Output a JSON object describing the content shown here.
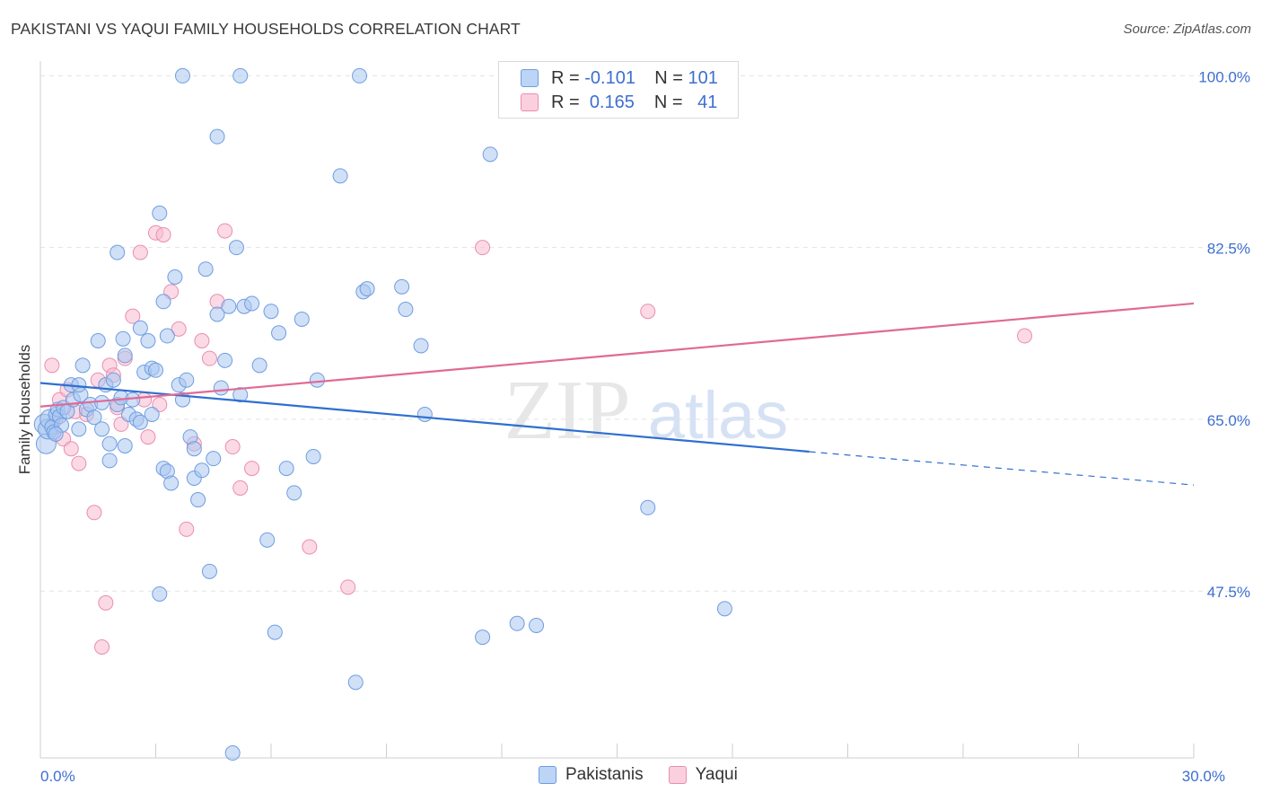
{
  "title": "PAKISTANI VS YAQUI FAMILY HOUSEHOLDS CORRELATION CHART",
  "source": "Source: ZipAtlas.com",
  "watermark": {
    "zip": "ZIP",
    "atlas": "atlas"
  },
  "legend_top": {
    "rows": [
      {
        "r_label": "R =",
        "r_value": "-0.101",
        "n_label": "N =",
        "n_value": "101"
      },
      {
        "r_label": "R =",
        "r_value": "0.165",
        "n_label": "N =",
        "n_value": "41"
      }
    ]
  },
  "legend_bottom": {
    "series1": "Pakistanis",
    "series2": "Yaqui"
  },
  "colors": {
    "blue_fill": "#a9c7f0",
    "blue_stroke": "#6f9de0",
    "blue_line": "#2f6fd0",
    "pink_fill": "#f7bcd0",
    "pink_stroke": "#ea8db0",
    "pink_line": "#e06a96",
    "axis_text": "#3d6fd0",
    "grid": "#e3e3e3"
  },
  "chart_data": {
    "type": "scatter",
    "title": "PAKISTANI VS YAQUI FAMILY HOUSEHOLDS CORRELATION CHART",
    "xlabel": "",
    "ylabel": "Family Households",
    "xlim": [
      0,
      30
    ],
    "ylim": [
      30.5,
      101.5
    ],
    "x_tick_labels": [
      {
        "value": 0,
        "label": "0.0%"
      },
      {
        "value": 30,
        "label": "30.0%"
      }
    ],
    "y_ticks": [
      {
        "value": 100,
        "label": "100.0%"
      },
      {
        "value": 82.5,
        "label": "82.5%"
      },
      {
        "value": 65,
        "label": "65.0%"
      },
      {
        "value": 47.5,
        "label": "47.5%"
      }
    ],
    "series": [
      {
        "name": "Pakistanis",
        "r": -0.101,
        "n": 101,
        "trend": {
          "x": [
            0,
            20
          ],
          "y": [
            68.7,
            61.7
          ],
          "dashed_extension": {
            "x": [
              20,
              30
            ],
            "y": [
              61.7,
              58.3
            ]
          }
        },
        "points": [
          [
            0.1,
            64.5
          ],
          [
            0.15,
            62.5
          ],
          [
            0.2,
            64
          ],
          [
            0.25,
            65
          ],
          [
            0.3,
            64.2
          ],
          [
            0.35,
            63.7
          ],
          [
            0.4,
            65.5
          ],
          [
            0.45,
            66
          ],
          [
            0.5,
            65.3
          ],
          [
            0.55,
            64.4
          ],
          [
            0.6,
            66.2
          ],
          [
            0.7,
            65.8
          ],
          [
            0.8,
            68.5
          ],
          [
            0.85,
            67
          ],
          [
            1.0,
            64
          ],
          [
            1.05,
            67.5
          ],
          [
            1.1,
            70.5
          ],
          [
            1.2,
            66
          ],
          [
            1.3,
            66.5
          ],
          [
            1.4,
            65.2
          ],
          [
            1.5,
            73
          ],
          [
            1.6,
            66.7
          ],
          [
            1.7,
            68.5
          ],
          [
            1.8,
            62.5
          ],
          [
            1.9,
            69
          ],
          [
            2.0,
            66.5
          ],
          [
            2.1,
            67.2
          ],
          [
            2.15,
            73.2
          ],
          [
            2.2,
            71.5
          ],
          [
            2.3,
            65.5
          ],
          [
            2.4,
            67
          ],
          [
            2.5,
            65
          ],
          [
            2.6,
            74.3
          ],
          [
            2.7,
            69.8
          ],
          [
            2.8,
            73
          ],
          [
            2.9,
            70.2
          ],
          [
            3.0,
            70
          ],
          [
            3.1,
            86
          ],
          [
            3.2,
            60
          ],
          [
            3.3,
            59.7
          ],
          [
            3.4,
            58.5
          ],
          [
            3.5,
            79.5
          ],
          [
            3.6,
            68.5
          ],
          [
            3.7,
            67
          ],
          [
            3.8,
            69
          ],
          [
            3.9,
            63.2
          ],
          [
            4.0,
            59
          ],
          [
            4.1,
            56.8
          ],
          [
            4.2,
            59.8
          ],
          [
            4.3,
            80.3
          ],
          [
            4.4,
            49.5
          ],
          [
            4.5,
            61
          ],
          [
            4.6,
            75.7
          ],
          [
            4.7,
            68.2
          ],
          [
            4.8,
            71
          ],
          [
            4.9,
            76.5
          ],
          [
            5.0,
            31
          ],
          [
            5.1,
            82.5
          ],
          [
            5.2,
            67.5
          ],
          [
            5.3,
            76.5
          ],
          [
            5.5,
            76.8
          ],
          [
            5.7,
            70.5
          ],
          [
            5.9,
            52.7
          ],
          [
            6.0,
            76
          ],
          [
            6.1,
            43.3
          ],
          [
            6.2,
            73.8
          ],
          [
            6.4,
            60
          ],
          [
            6.6,
            57.5
          ],
          [
            6.8,
            75.2
          ],
          [
            7.1,
            61.2
          ],
          [
            7.2,
            69
          ],
          [
            7.8,
            89.8
          ],
          [
            8.2,
            38.2
          ],
          [
            8.4,
            78
          ],
          [
            8.5,
            78.3
          ],
          [
            9.4,
            78.5
          ],
          [
            9.5,
            76.2
          ],
          [
            9.9,
            72.5
          ],
          [
            10.0,
            65.5
          ],
          [
            11.5,
            42.8
          ],
          [
            11.7,
            92
          ],
          [
            12.4,
            44.2
          ],
          [
            12.9,
            44
          ],
          [
            15.8,
            56
          ],
          [
            17.8,
            45.7
          ],
          [
            3.1,
            47.2
          ],
          [
            2.0,
            82
          ],
          [
            2.6,
            64.7
          ],
          [
            1.8,
            60.8
          ],
          [
            3.7,
            100
          ],
          [
            5.2,
            100
          ],
          [
            8.3,
            100
          ],
          [
            4.6,
            93.8
          ],
          [
            3.2,
            77
          ],
          [
            1.0,
            68.5
          ],
          [
            0.4,
            63.5
          ],
          [
            2.2,
            62.3
          ],
          [
            1.6,
            64
          ],
          [
            4.0,
            62
          ],
          [
            2.9,
            65.5
          ],
          [
            3.3,
            73.5
          ]
        ]
      },
      {
        "name": "Yaqui",
        "r": 0.165,
        "n": 41,
        "trend": {
          "x": [
            0,
            30
          ],
          "y": [
            66.3,
            76.8
          ]
        },
        "points": [
          [
            0.3,
            70.5
          ],
          [
            0.4,
            65
          ],
          [
            0.5,
            67
          ],
          [
            0.6,
            63
          ],
          [
            0.8,
            62
          ],
          [
            1.0,
            60.5
          ],
          [
            1.2,
            65.5
          ],
          [
            1.4,
            55.5
          ],
          [
            1.5,
            69
          ],
          [
            1.6,
            41.8
          ],
          [
            1.7,
            46.3
          ],
          [
            1.8,
            70.5
          ],
          [
            2.0,
            66.2
          ],
          [
            2.2,
            71.2
          ],
          [
            2.4,
            75.5
          ],
          [
            2.6,
            82
          ],
          [
            2.8,
            63.2
          ],
          [
            3.0,
            84
          ],
          [
            3.2,
            83.8
          ],
          [
            3.4,
            78
          ],
          [
            3.6,
            74.2
          ],
          [
            3.8,
            53.8
          ],
          [
            4.0,
            62.5
          ],
          [
            4.2,
            73
          ],
          [
            4.4,
            71.2
          ],
          [
            4.6,
            77
          ],
          [
            4.8,
            84.2
          ],
          [
            5.0,
            62.2
          ],
          [
            5.2,
            58
          ],
          [
            5.5,
            60
          ],
          [
            7.0,
            52
          ],
          [
            8.0,
            47.9
          ],
          [
            11.5,
            82.5
          ],
          [
            15.8,
            76
          ],
          [
            25.6,
            73.5
          ],
          [
            0.7,
            68
          ],
          [
            1.9,
            69.5
          ],
          [
            2.7,
            67
          ],
          [
            3.1,
            66.5
          ],
          [
            0.9,
            65.8
          ],
          [
            2.1,
            64.5
          ]
        ]
      }
    ]
  }
}
